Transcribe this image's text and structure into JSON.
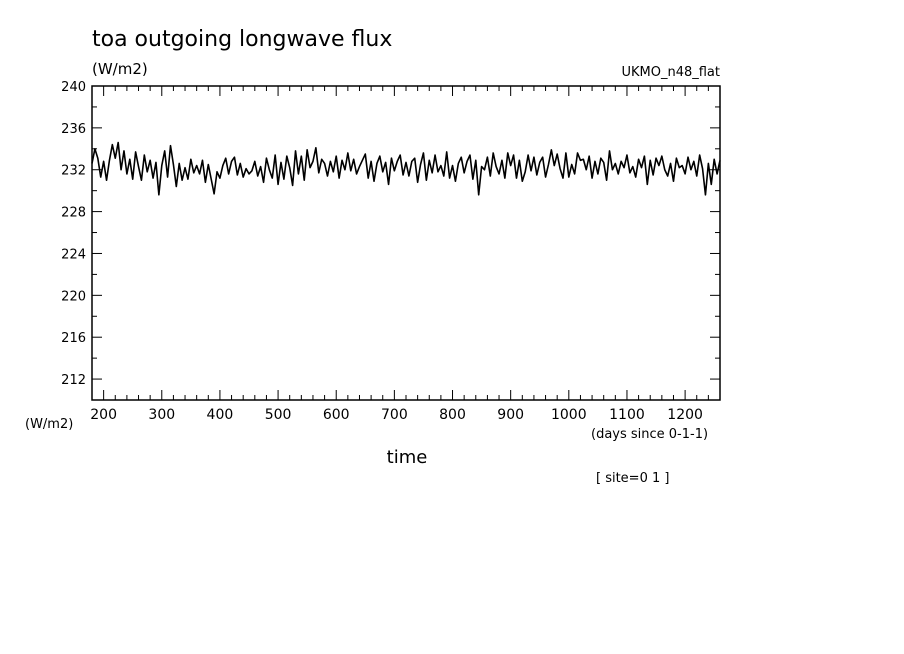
{
  "title": "toa outgoing longwave flux",
  "units": "(W/m2)",
  "model_label": "UKMO_n48_flat",
  "y_axis_units_label": "(W/m2)",
  "x_axis_units_label": "(days since 0-1-1)",
  "site_label": "[ site=0 1 ]",
  "chart_data": {
    "type": "line",
    "xlabel": "time",
    "ylabel": "(W/m2)",
    "xlim": [
      180,
      1260
    ],
    "ylim": [
      210,
      240
    ],
    "x_ticks": [
      200,
      300,
      400,
      500,
      600,
      700,
      800,
      900,
      1000,
      1100,
      1200
    ],
    "y_ticks": [
      212,
      216,
      220,
      224,
      228,
      232,
      236,
      240
    ],
    "grid": false,
    "x": [
      180,
      185,
      190,
      195,
      200,
      205,
      210,
      215,
      220,
      225,
      230,
      235,
      240,
      245,
      250,
      255,
      260,
      265,
      270,
      275,
      280,
      285,
      290,
      295,
      300,
      305,
      310,
      315,
      320,
      325,
      330,
      335,
      340,
      345,
      350,
      355,
      360,
      365,
      370,
      375,
      380,
      385,
      390,
      395,
      400,
      405,
      410,
      415,
      420,
      425,
      430,
      435,
      440,
      445,
      450,
      455,
      460,
      465,
      470,
      475,
      480,
      485,
      490,
      495,
      500,
      505,
      510,
      515,
      520,
      525,
      530,
      535,
      540,
      545,
      550,
      555,
      560,
      565,
      570,
      575,
      580,
      585,
      590,
      595,
      600,
      605,
      610,
      615,
      620,
      625,
      630,
      635,
      640,
      645,
      650,
      655,
      660,
      665,
      670,
      675,
      680,
      685,
      690,
      695,
      700,
      705,
      710,
      715,
      720,
      725,
      730,
      735,
      740,
      745,
      750,
      755,
      760,
      765,
      770,
      775,
      780,
      785,
      790,
      795,
      800,
      805,
      810,
      815,
      820,
      825,
      830,
      835,
      840,
      845,
      850,
      855,
      860,
      865,
      870,
      875,
      880,
      885,
      890,
      895,
      900,
      905,
      910,
      915,
      920,
      925,
      930,
      935,
      940,
      945,
      950,
      955,
      960,
      965,
      970,
      975,
      980,
      985,
      990,
      995,
      1000,
      1005,
      1010,
      1015,
      1020,
      1025,
      1030,
      1035,
      1040,
      1045,
      1050,
      1055,
      1060,
      1065,
      1070,
      1075,
      1080,
      1085,
      1090,
      1095,
      1100,
      1105,
      1110,
      1115,
      1120,
      1125,
      1130,
      1135,
      1140,
      1145,
      1150,
      1155,
      1160,
      1165,
      1170,
      1175,
      1180,
      1185,
      1190,
      1195,
      1200,
      1205,
      1210,
      1215,
      1220,
      1225,
      1230,
      1235,
      1240,
      1245,
      1250,
      1255,
      1260
    ],
    "series": [
      {
        "values": [
          232.6,
          234.0,
          233.1,
          231.3,
          232.8,
          231.0,
          232.9,
          234.4,
          233.1,
          234.6,
          232.0,
          233.8,
          231.6,
          233.0,
          231.1,
          233.7,
          232.3,
          231.0,
          233.4,
          231.8,
          232.9,
          231.2,
          232.7,
          229.6,
          232.4,
          233.8,
          231.3,
          234.3,
          232.5,
          230.4,
          232.6,
          231.0,
          232.2,
          231.1,
          233.0,
          231.7,
          232.4,
          231.6,
          232.9,
          230.8,
          232.5,
          231.1,
          229.7,
          231.8,
          231.2,
          232.4,
          233.1,
          231.6,
          232.8,
          233.2,
          231.5,
          232.6,
          231.3,
          232.1,
          231.6,
          231.9,
          232.8,
          231.4,
          232.3,
          230.8,
          233.1,
          232.0,
          231.2,
          233.4,
          230.6,
          232.7,
          231.1,
          233.3,
          232.2,
          230.5,
          233.8,
          231.6,
          233.3,
          231.0,
          233.9,
          232.2,
          232.8,
          234.1,
          231.7,
          233.0,
          232.6,
          231.4,
          232.8,
          231.8,
          233.3,
          231.2,
          232.9,
          232.0,
          233.6,
          231.9,
          233.0,
          231.6,
          232.3,
          232.9,
          233.5,
          231.2,
          232.8,
          230.9,
          232.6,
          233.3,
          231.8,
          232.7,
          230.6,
          233.1,
          231.9,
          232.8,
          233.4,
          231.5,
          232.7,
          231.4,
          232.8,
          233.1,
          230.8,
          232.5,
          233.6,
          231.0,
          232.9,
          231.7,
          233.4,
          231.8,
          232.4,
          231.4,
          233.7,
          231.2,
          232.4,
          230.9,
          232.6,
          233.2,
          231.7,
          232.8,
          233.4,
          231.1,
          232.9,
          229.6,
          232.3,
          232.0,
          233.2,
          231.4,
          233.6,
          232.3,
          231.6,
          232.9,
          231.2,
          233.6,
          232.4,
          233.4,
          231.2,
          232.9,
          230.9,
          231.8,
          233.4,
          231.9,
          233.2,
          231.5,
          232.7,
          233.2,
          231.3,
          232.5,
          233.9,
          232.4,
          233.5,
          232.1,
          231.2,
          233.6,
          231.3,
          232.5,
          231.6,
          233.6,
          232.9,
          233.0,
          232.0,
          233.3,
          231.2,
          232.8,
          231.6,
          233.1,
          232.7,
          231.0,
          233.8,
          232.0,
          232.6,
          231.6,
          232.8,
          232.2,
          233.4,
          231.7,
          232.3,
          231.3,
          233.0,
          232.2,
          233.3,
          230.6,
          232.9,
          231.5,
          233.1,
          232.4,
          233.3,
          232.0,
          231.4,
          232.6,
          230.9,
          233.1,
          232.2,
          232.4,
          231.6,
          233.2,
          232.0,
          232.8,
          231.4,
          233.4,
          232.1,
          229.6,
          232.6,
          230.6,
          233.0,
          231.6,
          232.9
        ]
      }
    ]
  }
}
